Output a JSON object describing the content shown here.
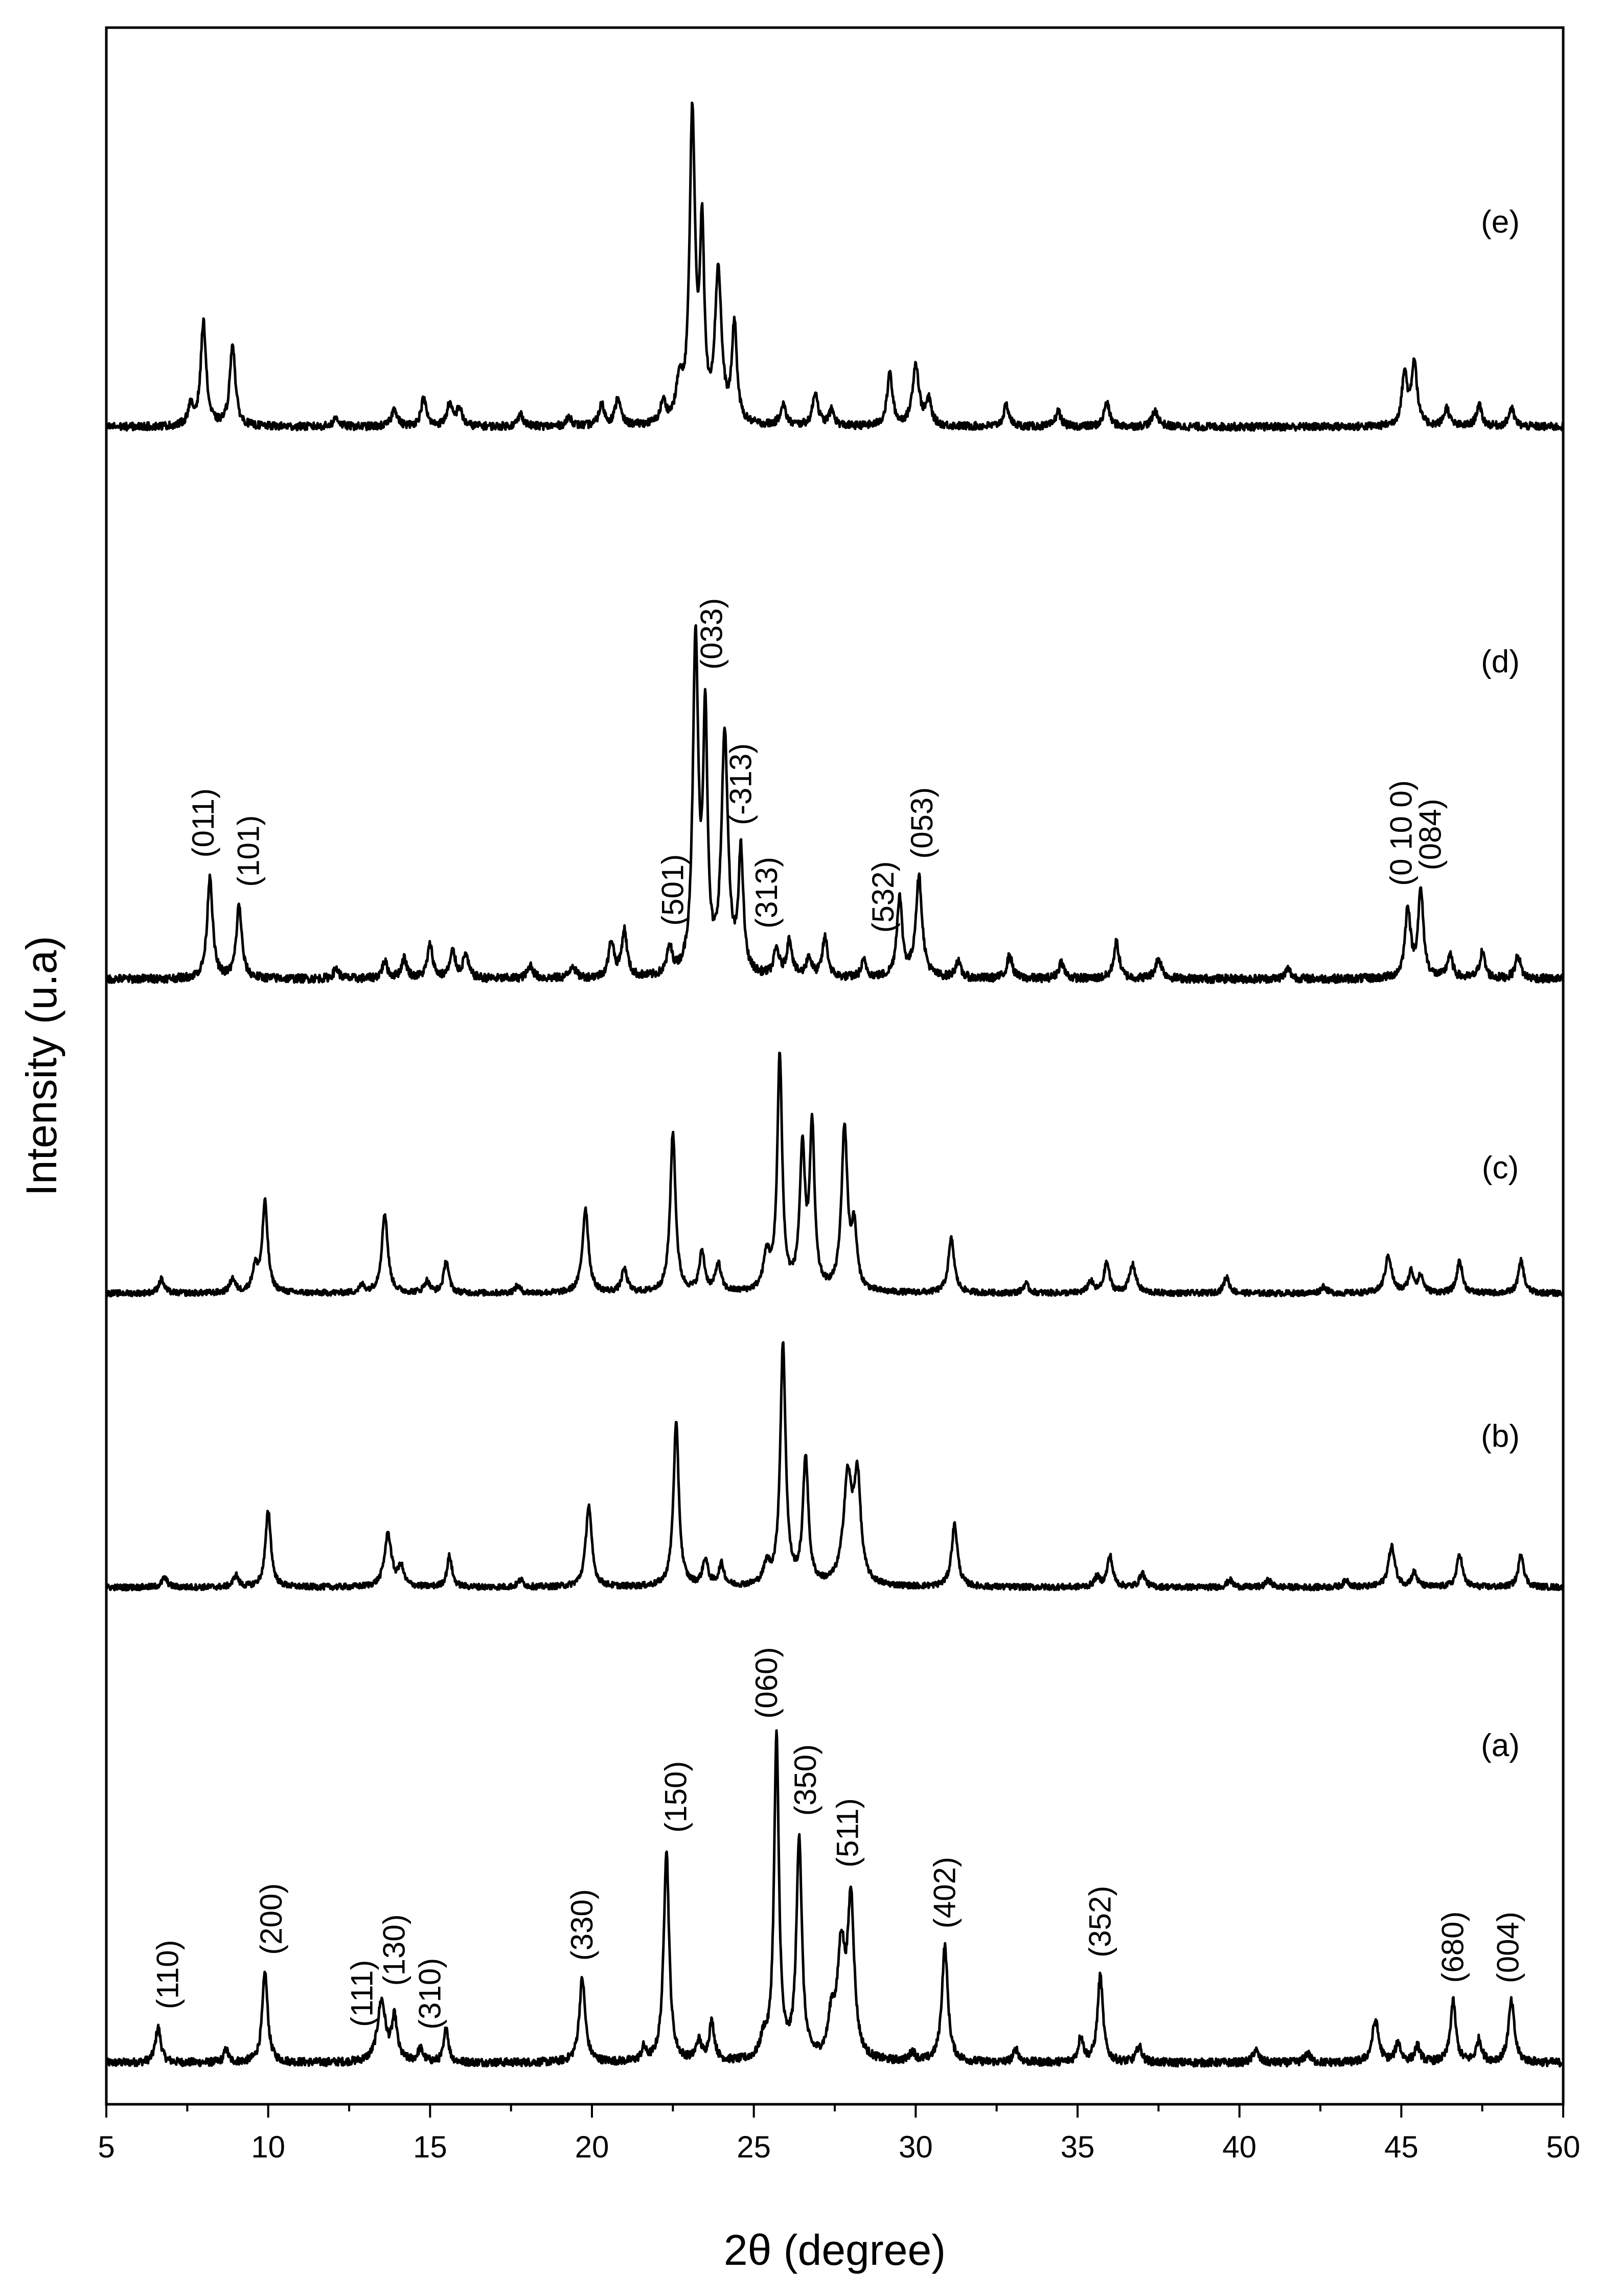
{
  "chart_data": {
    "type": "line",
    "title": "",
    "xlabel": "2θ (degree)",
    "ylabel": "Intensity (u.a)",
    "xlim": [
      5,
      50
    ],
    "x_ticks": [
      5,
      10,
      15,
      20,
      25,
      30,
      35,
      40,
      45,
      50
    ],
    "x_tick_labels": [
      "5",
      "10",
      "15",
      "20",
      "25",
      "30",
      "35",
      "40",
      "45",
      "50"
    ],
    "y_ticks_shown": false,
    "grid": false,
    "legend": "none",
    "series": [
      {
        "name": "(a)",
        "baseline": 0.0,
        "peaks": [
          {
            "x": 6.6,
            "h": 0.11,
            "w": 0.1
          },
          {
            "x": 8.7,
            "h": 0.04,
            "w": 0.08
          },
          {
            "x": 9.9,
            "h": 0.28,
            "w": 0.1
          },
          {
            "x": 13.5,
            "h": 0.19,
            "w": 0.15
          },
          {
            "x": 13.9,
            "h": 0.13,
            "w": 0.1
          },
          {
            "x": 14.7,
            "h": 0.04,
            "w": 0.1
          },
          {
            "x": 15.5,
            "h": 0.11,
            "w": 0.08
          },
          {
            "x": 19.7,
            "h": 0.26,
            "w": 0.11
          },
          {
            "x": 21.6,
            "h": 0.04,
            "w": 0.08
          },
          {
            "x": 22.3,
            "h": 0.66,
            "w": 0.1
          },
          {
            "x": 23.3,
            "h": 0.06,
            "w": 0.1
          },
          {
            "x": 23.7,
            "h": 0.12,
            "w": 0.1
          },
          {
            "x": 25.3,
            "h": 0.06,
            "w": 0.12
          },
          {
            "x": 25.7,
            "h": 1.0,
            "w": 0.09
          },
          {
            "x": 26.4,
            "h": 0.69,
            "w": 0.1
          },
          {
            "x": 27.4,
            "h": 0.12,
            "w": 0.12
          },
          {
            "x": 27.7,
            "h": 0.33,
            "w": 0.14
          },
          {
            "x": 28.0,
            "h": 0.48,
            "w": 0.12
          },
          {
            "x": 29.9,
            "h": 0.03,
            "w": 0.1
          },
          {
            "x": 30.9,
            "h": 0.36,
            "w": 0.11
          },
          {
            "x": 33.1,
            "h": 0.04,
            "w": 0.1
          },
          {
            "x": 35.1,
            "h": 0.08,
            "w": 0.09
          },
          {
            "x": 35.7,
            "h": 0.27,
            "w": 0.1
          },
          {
            "x": 36.9,
            "h": 0.05,
            "w": 0.1
          },
          {
            "x": 40.5,
            "h": 0.04,
            "w": 0.1
          },
          {
            "x": 42.1,
            "h": 0.03,
            "w": 0.1
          },
          {
            "x": 44.2,
            "h": 0.13,
            "w": 0.12
          },
          {
            "x": 44.9,
            "h": 0.06,
            "w": 0.1
          },
          {
            "x": 45.5,
            "h": 0.05,
            "w": 0.1
          },
          {
            "x": 46.6,
            "h": 0.19,
            "w": 0.1
          },
          {
            "x": 47.4,
            "h": 0.07,
            "w": 0.1
          },
          {
            "x": 48.4,
            "h": 0.19,
            "w": 0.11
          }
        ],
        "peak_labels": [
          {
            "x": 6.9,
            "text": "(110)"
          },
          {
            "x": 10.1,
            "text": "(200)"
          },
          {
            "x": 12.9,
            "text": "(111)"
          },
          {
            "x": 13.9,
            "text": "(130)"
          },
          {
            "x": 15.0,
            "text": "(310)"
          },
          {
            "x": 19.7,
            "text": "(330)"
          },
          {
            "x": 22.6,
            "text": "(150)"
          },
          {
            "x": 25.4,
            "text": "(060)"
          },
          {
            "x": 26.6,
            "text": "(350)"
          },
          {
            "x": 27.9,
            "text": "(511)"
          },
          {
            "x": 30.9,
            "text": "(402)"
          },
          {
            "x": 35.7,
            "text": "(352)"
          },
          {
            "x": 46.6,
            "text": "(680)"
          },
          {
            "x": 48.3,
            "text": "(004)"
          }
        ]
      },
      {
        "name": "(b)",
        "baseline": 1.0,
        "peaks": [
          {
            "x": 6.8,
            "h": 0.04,
            "w": 0.1
          },
          {
            "x": 9.0,
            "h": 0.05,
            "w": 0.09
          },
          {
            "x": 10.0,
            "h": 0.32,
            "w": 0.1
          },
          {
            "x": 13.7,
            "h": 0.22,
            "w": 0.13
          },
          {
            "x": 14.1,
            "h": 0.08,
            "w": 0.1
          },
          {
            "x": 15.6,
            "h": 0.13,
            "w": 0.09
          },
          {
            "x": 17.8,
            "h": 0.03,
            "w": 0.1
          },
          {
            "x": 19.9,
            "h": 0.34,
            "w": 0.11
          },
          {
            "x": 22.6,
            "h": 0.68,
            "w": 0.1
          },
          {
            "x": 23.5,
            "h": 0.11,
            "w": 0.1
          },
          {
            "x": 24.0,
            "h": 0.09,
            "w": 0.1
          },
          {
            "x": 25.4,
            "h": 0.08,
            "w": 0.12
          },
          {
            "x": 25.9,
            "h": 1.0,
            "w": 0.1
          },
          {
            "x": 26.6,
            "h": 0.53,
            "w": 0.1
          },
          {
            "x": 27.9,
            "h": 0.44,
            "w": 0.16
          },
          {
            "x": 28.2,
            "h": 0.42,
            "w": 0.12
          },
          {
            "x": 31.2,
            "h": 0.26,
            "w": 0.11
          },
          {
            "x": 35.6,
            "h": 0.04,
            "w": 0.1
          },
          {
            "x": 36.0,
            "h": 0.13,
            "w": 0.1
          },
          {
            "x": 37.0,
            "h": 0.06,
            "w": 0.1
          },
          {
            "x": 39.7,
            "h": 0.03,
            "w": 0.1
          },
          {
            "x": 40.9,
            "h": 0.03,
            "w": 0.1
          },
          {
            "x": 43.3,
            "h": 0.03,
            "w": 0.1
          },
          {
            "x": 44.7,
            "h": 0.17,
            "w": 0.12
          },
          {
            "x": 45.4,
            "h": 0.06,
            "w": 0.1
          },
          {
            "x": 46.8,
            "h": 0.14,
            "w": 0.1
          },
          {
            "x": 48.7,
            "h": 0.14,
            "w": 0.1
          }
        ],
        "peak_labels": []
      },
      {
        "name": "(c)",
        "baseline": 2.0,
        "peaks": [
          {
            "x": 6.7,
            "h": 0.06,
            "w": 0.1
          },
          {
            "x": 8.9,
            "h": 0.06,
            "w": 0.1
          },
          {
            "x": 9.6,
            "h": 0.1,
            "w": 0.11
          },
          {
            "x": 9.9,
            "h": 0.38,
            "w": 0.1
          },
          {
            "x": 12.9,
            "h": 0.03,
            "w": 0.1
          },
          {
            "x": 13.6,
            "h": 0.34,
            "w": 0.11
          },
          {
            "x": 14.9,
            "h": 0.05,
            "w": 0.1
          },
          {
            "x": 15.5,
            "h": 0.14,
            "w": 0.09
          },
          {
            "x": 17.7,
            "h": 0.03,
            "w": 0.1
          },
          {
            "x": 19.8,
            "h": 0.36,
            "w": 0.11
          },
          {
            "x": 21.0,
            "h": 0.1,
            "w": 0.1
          },
          {
            "x": 22.5,
            "h": 0.68,
            "w": 0.1
          },
          {
            "x": 23.4,
            "h": 0.17,
            "w": 0.1
          },
          {
            "x": 23.9,
            "h": 0.12,
            "w": 0.1
          },
          {
            "x": 25.4,
            "h": 0.15,
            "w": 0.12
          },
          {
            "x": 25.8,
            "h": 1.0,
            "w": 0.09
          },
          {
            "x": 26.5,
            "h": 0.58,
            "w": 0.1
          },
          {
            "x": 26.8,
            "h": 0.68,
            "w": 0.09
          },
          {
            "x": 27.8,
            "h": 0.69,
            "w": 0.11
          },
          {
            "x": 28.1,
            "h": 0.25,
            "w": 0.1
          },
          {
            "x": 31.1,
            "h": 0.23,
            "w": 0.11
          },
          {
            "x": 33.4,
            "h": 0.04,
            "w": 0.1
          },
          {
            "x": 35.4,
            "h": 0.05,
            "w": 0.1
          },
          {
            "x": 35.9,
            "h": 0.13,
            "w": 0.1
          },
          {
            "x": 36.7,
            "h": 0.12,
            "w": 0.12
          },
          {
            "x": 39.6,
            "h": 0.07,
            "w": 0.1
          },
          {
            "x": 42.6,
            "h": 0.03,
            "w": 0.1
          },
          {
            "x": 44.6,
            "h": 0.16,
            "w": 0.12
          },
          {
            "x": 45.3,
            "h": 0.09,
            "w": 0.1
          },
          {
            "x": 45.6,
            "h": 0.07,
            "w": 0.1
          },
          {
            "x": 46.8,
            "h": 0.14,
            "w": 0.1
          },
          {
            "x": 48.7,
            "h": 0.14,
            "w": 0.1
          }
        ],
        "peak_labels": []
      },
      {
        "name": "(d)",
        "baseline": 3.0,
        "peaks": [
          {
            "x": 8.2,
            "h": 0.31,
            "w": 0.1
          },
          {
            "x": 9.1,
            "h": 0.22,
            "w": 0.1
          },
          {
            "x": 12.1,
            "h": 0.03,
            "w": 0.1
          },
          {
            "x": 13.6,
            "h": 0.05,
            "w": 0.1
          },
          {
            "x": 14.2,
            "h": 0.06,
            "w": 0.1
          },
          {
            "x": 15.0,
            "h": 0.1,
            "w": 0.1
          },
          {
            "x": 15.7,
            "h": 0.08,
            "w": 0.1
          },
          {
            "x": 16.1,
            "h": 0.07,
            "w": 0.1
          },
          {
            "x": 18.1,
            "h": 0.04,
            "w": 0.1
          },
          {
            "x": 19.4,
            "h": 0.04,
            "w": 0.1
          },
          {
            "x": 20.6,
            "h": 0.11,
            "w": 0.1
          },
          {
            "x": 21.0,
            "h": 0.14,
            "w": 0.1
          },
          {
            "x": 22.4,
            "h": 0.08,
            "w": 0.1
          },
          {
            "x": 23.2,
            "h": 1.0,
            "w": 0.1
          },
          {
            "x": 23.5,
            "h": 0.75,
            "w": 0.08
          },
          {
            "x": 24.1,
            "h": 0.72,
            "w": 0.12
          },
          {
            "x": 24.6,
            "h": 0.36,
            "w": 0.09
          },
          {
            "x": 25.7,
            "h": 0.08,
            "w": 0.1
          },
          {
            "x": 26.1,
            "h": 0.11,
            "w": 0.1
          },
          {
            "x": 26.7,
            "h": 0.06,
            "w": 0.1
          },
          {
            "x": 27.2,
            "h": 0.12,
            "w": 0.1
          },
          {
            "x": 28.4,
            "h": 0.05,
            "w": 0.1
          },
          {
            "x": 29.5,
            "h": 0.24,
            "w": 0.1
          },
          {
            "x": 30.1,
            "h": 0.3,
            "w": 0.12
          },
          {
            "x": 31.3,
            "h": 0.05,
            "w": 0.1
          },
          {
            "x": 32.9,
            "h": 0.07,
            "w": 0.1
          },
          {
            "x": 34.5,
            "h": 0.05,
            "w": 0.1
          },
          {
            "x": 36.2,
            "h": 0.11,
            "w": 0.1
          },
          {
            "x": 37.5,
            "h": 0.06,
            "w": 0.12
          },
          {
            "x": 41.5,
            "h": 0.03,
            "w": 0.1
          },
          {
            "x": 45.2,
            "h": 0.21,
            "w": 0.1
          },
          {
            "x": 45.6,
            "h": 0.26,
            "w": 0.1
          },
          {
            "x": 46.5,
            "h": 0.07,
            "w": 0.1
          },
          {
            "x": 47.5,
            "h": 0.08,
            "w": 0.1
          },
          {
            "x": 48.6,
            "h": 0.07,
            "w": 0.1
          }
        ],
        "peak_labels": [
          {
            "x": 8.0,
            "text": "(011)"
          },
          {
            "x": 9.4,
            "text": "(101)"
          },
          {
            "x": 22.5,
            "text": "(501)"
          },
          {
            "x": 23.7,
            "text": "(033)"
          },
          {
            "x": 24.6,
            "text": "(-313)"
          },
          {
            "x": 25.4,
            "text": "(313)"
          },
          {
            "x": 29.0,
            "text": "(532)"
          },
          {
            "x": 30.2,
            "text": "(053)"
          },
          {
            "x": 45.0,
            "text": "(0 10 0)"
          },
          {
            "x": 45.9,
            "text": "(084)"
          }
        ]
      },
      {
        "name": "(e)",
        "baseline": 4.0,
        "peaks": [
          {
            "x": 7.6,
            "h": 0.06,
            "w": 0.1
          },
          {
            "x": 8.0,
            "h": 0.34,
            "w": 0.1
          },
          {
            "x": 8.9,
            "h": 0.27,
            "w": 0.1
          },
          {
            "x": 12.1,
            "h": 0.03,
            "w": 0.1
          },
          {
            "x": 13.9,
            "h": 0.06,
            "w": 0.1
          },
          {
            "x": 14.8,
            "h": 0.09,
            "w": 0.1
          },
          {
            "x": 15.6,
            "h": 0.07,
            "w": 0.1
          },
          {
            "x": 15.9,
            "h": 0.06,
            "w": 0.1
          },
          {
            "x": 17.8,
            "h": 0.04,
            "w": 0.1
          },
          {
            "x": 19.3,
            "h": 0.03,
            "w": 0.1
          },
          {
            "x": 20.3,
            "h": 0.07,
            "w": 0.1
          },
          {
            "x": 20.8,
            "h": 0.09,
            "w": 0.1
          },
          {
            "x": 22.2,
            "h": 0.07,
            "w": 0.1
          },
          {
            "x": 22.7,
            "h": 0.12,
            "w": 0.12
          },
          {
            "x": 23.1,
            "h": 1.0,
            "w": 0.1
          },
          {
            "x": 23.4,
            "h": 0.6,
            "w": 0.08
          },
          {
            "x": 23.9,
            "h": 0.49,
            "w": 0.12
          },
          {
            "x": 24.4,
            "h": 0.32,
            "w": 0.09
          },
          {
            "x": 25.9,
            "h": 0.07,
            "w": 0.1
          },
          {
            "x": 26.9,
            "h": 0.11,
            "w": 0.1
          },
          {
            "x": 27.4,
            "h": 0.05,
            "w": 0.1
          },
          {
            "x": 29.2,
            "h": 0.17,
            "w": 0.1
          },
          {
            "x": 30.0,
            "h": 0.2,
            "w": 0.12
          },
          {
            "x": 30.4,
            "h": 0.08,
            "w": 0.1
          },
          {
            "x": 32.8,
            "h": 0.07,
            "w": 0.1
          },
          {
            "x": 34.4,
            "h": 0.05,
            "w": 0.1
          },
          {
            "x": 35.9,
            "h": 0.08,
            "w": 0.1
          },
          {
            "x": 37.4,
            "h": 0.05,
            "w": 0.12
          },
          {
            "x": 45.1,
            "h": 0.17,
            "w": 0.1
          },
          {
            "x": 45.4,
            "h": 0.21,
            "w": 0.1
          },
          {
            "x": 46.4,
            "h": 0.06,
            "w": 0.1
          },
          {
            "x": 47.4,
            "h": 0.07,
            "w": 0.1
          },
          {
            "x": 48.4,
            "h": 0.06,
            "w": 0.1
          }
        ],
        "peak_labels": []
      }
    ]
  }
}
